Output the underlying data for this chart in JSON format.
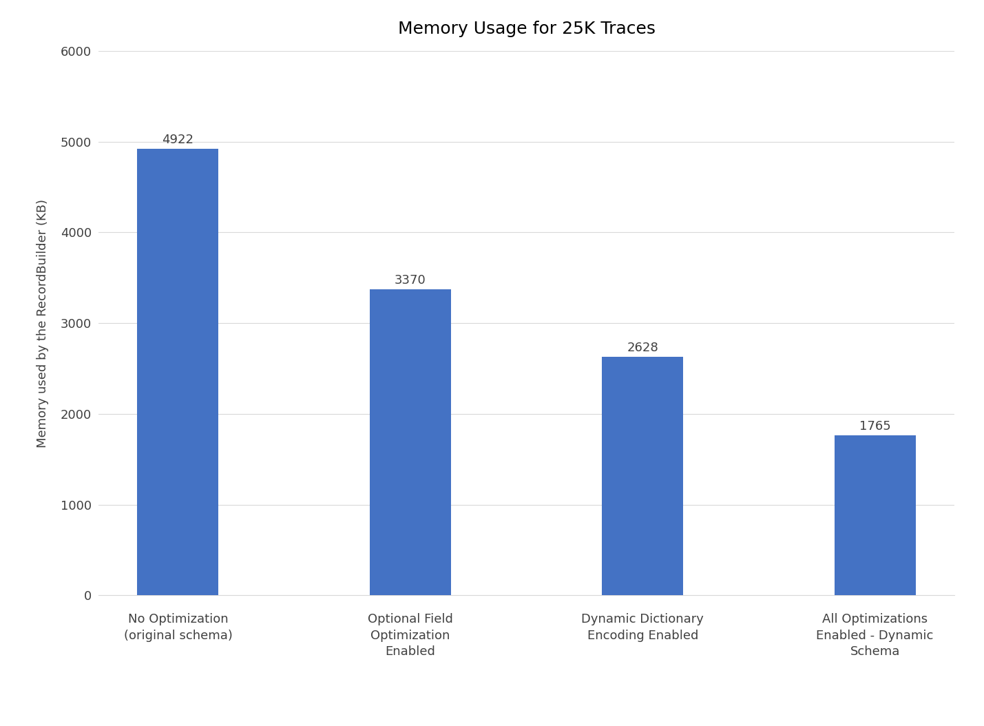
{
  "title": "Memory Usage for 25K Traces",
  "ylabel": "Memory used by the RecordBuilder (KB)",
  "categories": [
    "No Optimization\n(original schema)",
    "Optional Field\nOptimization\nEnabled",
    "Dynamic Dictionary\nEncoding Enabled",
    "All Optimizations\nEnabled - Dynamic\nSchema"
  ],
  "values": [
    4922,
    3370,
    2628,
    1765
  ],
  "bar_color": "#4472C4",
  "ylim": [
    0,
    6000
  ],
  "yticks": [
    0,
    1000,
    2000,
    3000,
    4000,
    5000,
    6000
  ],
  "background_color": "#FFFFFF",
  "grid_color": "#D9D9D9",
  "title_fontsize": 18,
  "label_fontsize": 13,
  "tick_fontsize": 13,
  "annotation_fontsize": 13,
  "bar_width": 0.35,
  "figsize": [
    14.29,
    10.54
  ]
}
